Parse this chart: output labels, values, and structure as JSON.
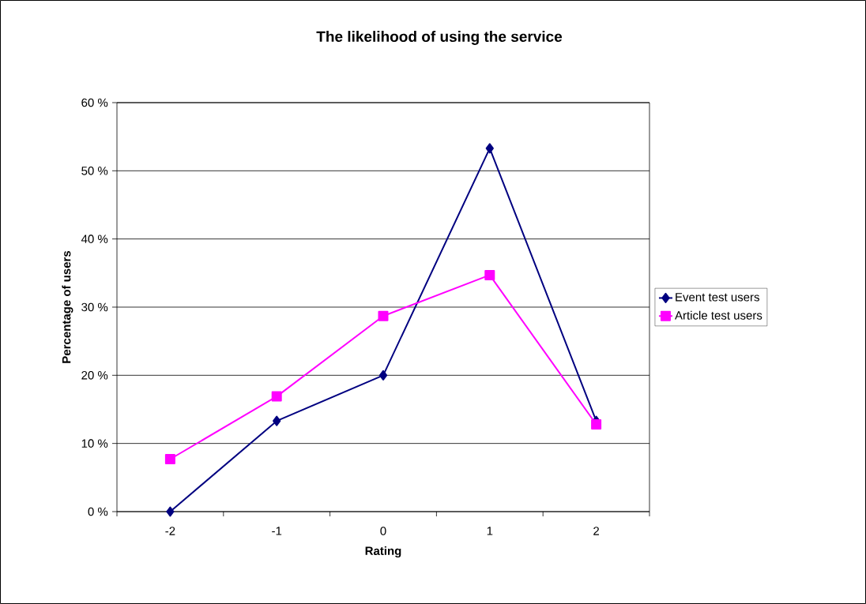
{
  "chart_data": {
    "type": "line",
    "title": "The likelihood of using the service",
    "xlabel": "Rating",
    "ylabel": "Percentage of users",
    "categories": [
      "-2",
      "-1",
      "0",
      "1",
      "2"
    ],
    "series": [
      {
        "name": "Event test users",
        "color": "#000080",
        "marker": "diamond",
        "values": [
          0,
          13.3,
          20.0,
          53.3,
          13.3
        ]
      },
      {
        "name": "Article test users",
        "color": "#ff00ff",
        "marker": "square",
        "values": [
          7.7,
          16.9,
          28.7,
          34.7,
          12.8
        ]
      }
    ],
    "ylim": [
      0,
      60
    ],
    "yticks": [
      {
        "value": 0,
        "label": "0 %"
      },
      {
        "value": 10,
        "label": "10 %"
      },
      {
        "value": 20,
        "label": "20 %"
      },
      {
        "value": 30,
        "label": "30 %"
      },
      {
        "value": 40,
        "label": "40 %"
      },
      {
        "value": 50,
        "label": "50 %"
      },
      {
        "value": 60,
        "label": "60 %"
      }
    ],
    "grid": "y",
    "legend": "right",
    "line_style": "solid"
  }
}
